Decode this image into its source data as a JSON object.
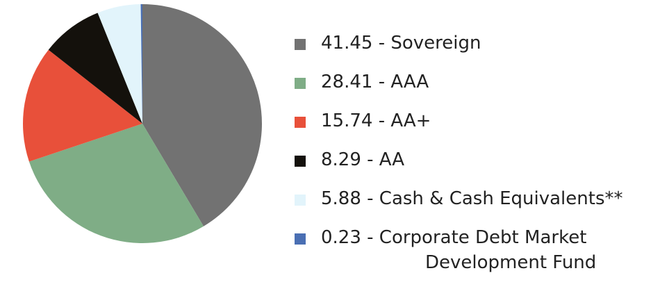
{
  "chart_data": {
    "type": "pie",
    "labels": [
      "41.45 - Sovereign",
      "28.41 - AAA",
      "15.74 - AA+",
      "8.29 - AA",
      "5.88 - Cash & Cash Equivalents**",
      "0.23 - Corporate Debt Market Development Fund"
    ],
    "values": [
      41.45,
      28.41,
      15.74,
      8.29,
      5.88,
      0.23
    ],
    "colors": [
      "#727272",
      "#7fad86",
      "#e8503a",
      "#14110c",
      "#e2f4fb",
      "#4a6fb3"
    ]
  }
}
